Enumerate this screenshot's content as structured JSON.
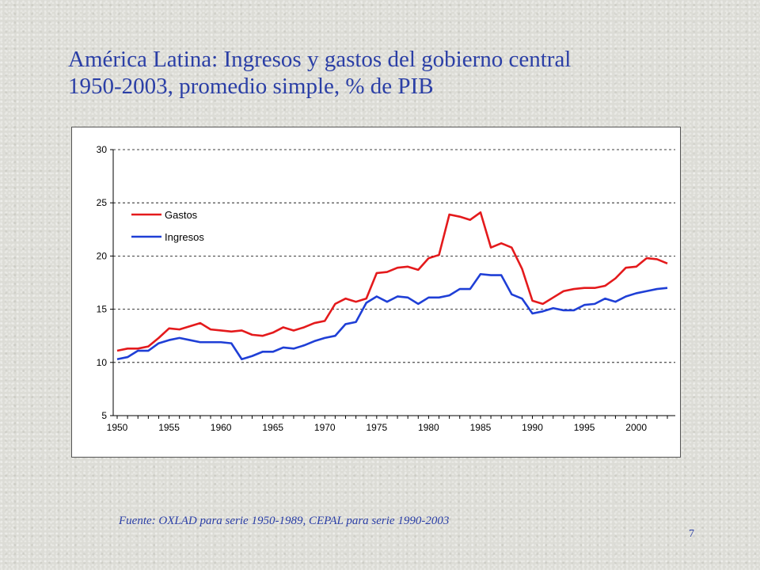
{
  "slide": {
    "title_line1": "América Latina: Ingresos y gastos del gobierno central",
    "title_line2": "1950-2003, promedio simple, % de PIB",
    "source": "Fuente: OXLAD para serie 1950-1989, CEPAL para serie 1990-2003",
    "page_number": "7"
  },
  "colors": {
    "title": "#2b3fa6",
    "gastos": "#e41a1c",
    "ingresos": "#1f3fd6",
    "grid": "#000000"
  },
  "chart_data": {
    "type": "line",
    "x": [
      1950,
      1951,
      1952,
      1953,
      1954,
      1955,
      1956,
      1957,
      1958,
      1959,
      1960,
      1961,
      1962,
      1963,
      1964,
      1965,
      1966,
      1967,
      1968,
      1969,
      1970,
      1971,
      1972,
      1973,
      1974,
      1975,
      1976,
      1977,
      1978,
      1979,
      1980,
      1981,
      1982,
      1983,
      1984,
      1985,
      1986,
      1987,
      1988,
      1989,
      1990,
      1991,
      1992,
      1993,
      1994,
      1995,
      1996,
      1997,
      1998,
      1999,
      2000,
      2001,
      2002,
      2003
    ],
    "x_ticks": [
      "1950",
      "1955",
      "1960",
      "1965",
      "1970",
      "1975",
      "1980",
      "1985",
      "1990",
      "1995",
      "2000"
    ],
    "y_ticks": [
      "5",
      "10",
      "15",
      "20",
      "25",
      "30"
    ],
    "ylim": [
      5,
      30
    ],
    "xlim": [
      1950,
      2003
    ],
    "grid": "horizontal dashed",
    "legend_position": "upper-left",
    "series": [
      {
        "name": "Gastos",
        "color": "#e41a1c",
        "values": [
          11.1,
          11.3,
          11.3,
          11.5,
          12.3,
          13.2,
          13.1,
          13.4,
          13.7,
          13.1,
          13.0,
          12.9,
          13.0,
          12.6,
          12.5,
          12.8,
          13.3,
          13.0,
          13.3,
          13.7,
          13.9,
          15.5,
          16.0,
          15.7,
          16.0,
          18.4,
          18.5,
          18.9,
          19.0,
          18.7,
          19.8,
          20.1,
          23.9,
          23.7,
          23.4,
          24.1,
          20.8,
          21.2,
          20.8,
          18.8,
          15.8,
          15.5,
          16.1,
          16.7,
          16.9,
          17.0,
          17.0,
          17.2,
          17.9,
          18.9,
          19.0,
          19.8,
          19.7,
          19.3
        ]
      },
      {
        "name": "Ingresos",
        "color": "#1f3fd6",
        "values": [
          10.3,
          10.5,
          11.1,
          11.1,
          11.8,
          12.1,
          12.3,
          12.1,
          11.9,
          11.9,
          11.9,
          11.8,
          10.3,
          10.6,
          11.0,
          11.0,
          11.4,
          11.3,
          11.6,
          12.0,
          12.3,
          12.5,
          13.6,
          13.8,
          15.6,
          16.2,
          15.7,
          16.2,
          16.1,
          15.5,
          16.1,
          16.1,
          16.3,
          16.9,
          16.9,
          18.3,
          18.2,
          18.2,
          16.4,
          16.0,
          14.6,
          14.8,
          15.1,
          14.9,
          14.9,
          15.4,
          15.5,
          16.0,
          15.7,
          16.2,
          16.5,
          16.7,
          16.9,
          17.0
        ]
      }
    ]
  }
}
